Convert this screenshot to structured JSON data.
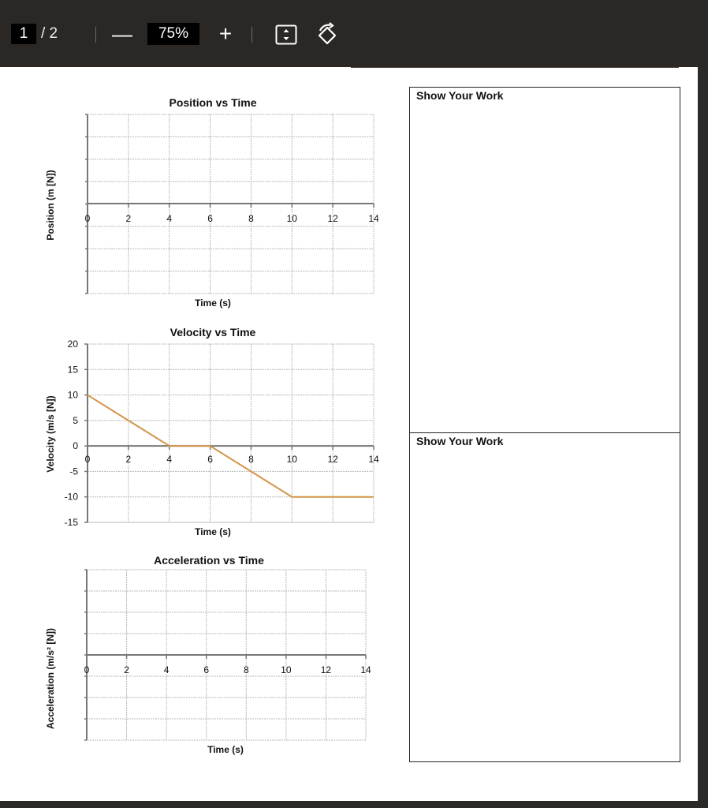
{
  "toolbar": {
    "page_current": "1",
    "page_total": "/ 2",
    "zoom_out_symbol": "—",
    "zoom_value": "75%",
    "zoom_in_symbol": "+",
    "fit_icon": "fit-page-icon",
    "rotate_icon": "rotate-icon"
  },
  "work_boxes": [
    {
      "label": "Show Your Work"
    },
    {
      "label": "Show Your Work"
    }
  ],
  "colors": {
    "line": "#d4944a",
    "axis": "#777777",
    "grid": "#b8b8b8"
  },
  "chart_data": [
    {
      "type": "line",
      "title": "Position vs Time",
      "xlabel": "Time (s)",
      "ylabel": "Position (m [N])",
      "x_ticks": [
        0,
        2,
        4,
        6,
        8,
        10,
        12,
        14
      ],
      "xlim": [
        0,
        14
      ],
      "y_ticks": [],
      "series": []
    },
    {
      "type": "line",
      "title": "Velocity vs Time",
      "xlabel": "Time (s)",
      "ylabel": "Velocity (m/s [N])",
      "x_ticks": [
        0,
        2,
        4,
        6,
        8,
        10,
        12,
        14
      ],
      "xlim": [
        0,
        14
      ],
      "y_ticks": [
        20,
        15,
        10,
        5,
        0,
        -5,
        -10,
        -15
      ],
      "ylim": [
        -15,
        20
      ],
      "series": [
        {
          "x": [
            0,
            4,
            6,
            10,
            14
          ],
          "y": [
            10,
            0,
            0,
            -10,
            -10
          ]
        }
      ]
    },
    {
      "type": "line",
      "title": "Acceleration vs Time",
      "xlabel": "Time (s)",
      "ylabel": "Acceleration (m/s² [N])",
      "x_ticks": [
        0,
        2,
        4,
        6,
        8,
        10,
        12,
        14
      ],
      "xlim": [
        0,
        14
      ],
      "y_ticks": [],
      "series": []
    }
  ]
}
